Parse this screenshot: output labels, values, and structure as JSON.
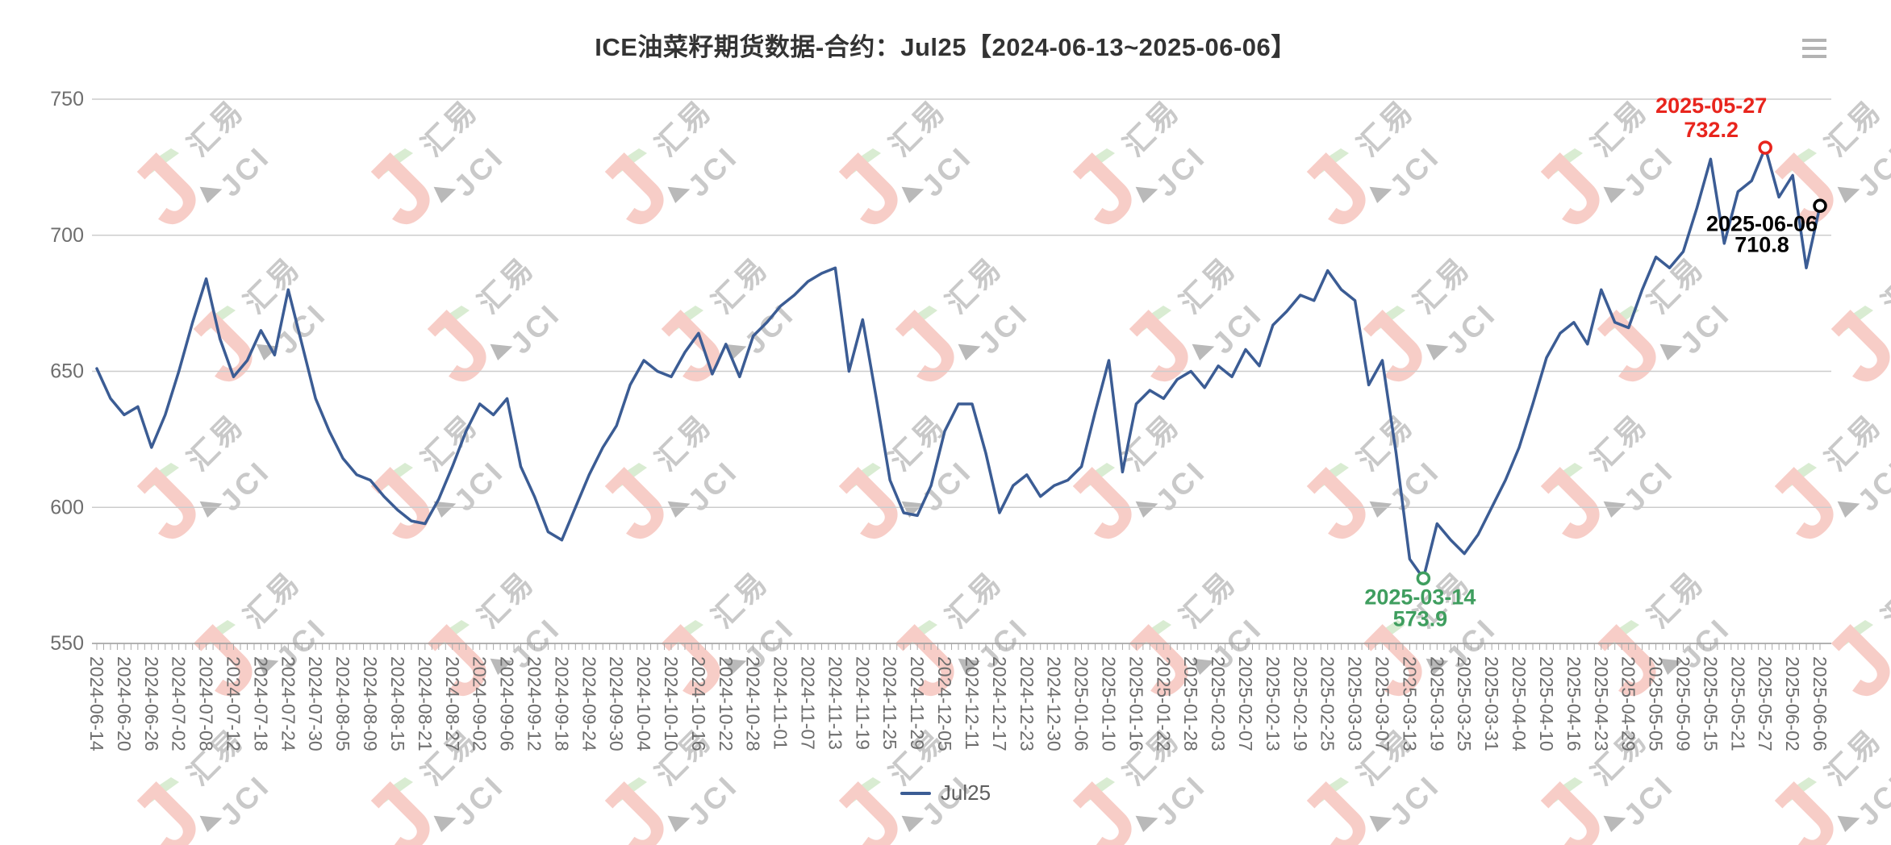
{
  "title": "ICE油菜籽期货数据-合约：Jul25【2024-06-13~2025-06-06】",
  "header": {
    "menu_icon": "hamburger-icon"
  },
  "legend": {
    "items": [
      {
        "label": "Jul25",
        "color": "#3b5c94"
      }
    ]
  },
  "y_axis": {
    "tick_labels": [
      "750",
      "700",
      "650",
      "600",
      "550"
    ],
    "min": 550,
    "max": 750
  },
  "annotations": {
    "max": {
      "date": "2025-05-27",
      "value": "732.2",
      "color": "#e8251d"
    },
    "min": {
      "date": "2025-03-14",
      "value": "573.9",
      "color": "#3f9e5f"
    },
    "last": {
      "date": "2025-06-06",
      "value": "710.8",
      "color": "#000000"
    }
  },
  "watermark": {
    "logo_letter": "J",
    "text_cn": "汇易",
    "text_en": "JCI"
  },
  "colors": {
    "line": "#3b5c94",
    "grid": "#cccccc",
    "axis_line": "#999999",
    "tick": "#aaaaaa",
    "axis_text": "#6e6e6e",
    "title_text": "#333333",
    "legend_text": "#5f5f5f",
    "menu_icon": "#b3b3b3",
    "wm_pink": "#f7cdc7",
    "wm_green": "#d9ecd2",
    "wm_gray": "#c9c9c9",
    "wm_dark_gray": "#b9b9b9"
  },
  "chart_data": {
    "type": "line",
    "title": "ICE油菜籽期货数据-合约：Jul25【2024-06-13~2025-06-06】",
    "ylim": [
      550,
      750
    ],
    "y_ticks": [
      750,
      700,
      650,
      600,
      550
    ],
    "grid": true,
    "legend_position": "bottom",
    "x_label_rotation": 90,
    "categories": [
      "2024-06-14",
      "2024-06-20",
      "2024-06-26",
      "2024-07-02",
      "2024-07-08",
      "2024-07-12",
      "2024-07-18",
      "2024-07-24",
      "2024-07-30",
      "2024-08-05",
      "2024-08-09",
      "2024-08-15",
      "2024-08-21",
      "2024-08-27",
      "2024-09-02",
      "2024-09-06",
      "2024-09-12",
      "2024-09-18",
      "2024-09-24",
      "2024-09-30",
      "2024-10-04",
      "2024-10-10",
      "2024-10-16",
      "2024-10-22",
      "2024-10-28",
      "2024-11-01",
      "2024-11-07",
      "2024-11-13",
      "2024-11-19",
      "2024-11-25",
      "2024-11-29",
      "2024-12-05",
      "2024-12-11",
      "2024-12-17",
      "2024-12-23",
      "2024-12-30",
      "2025-01-06",
      "2025-01-10",
      "2025-01-16",
      "2025-01-22",
      "2025-01-28",
      "2025-02-03",
      "2025-02-07",
      "2025-02-13",
      "2025-02-19",
      "2025-02-25",
      "2025-03-03",
      "2025-03-07",
      "2025-03-13",
      "2025-03-19",
      "2025-03-25",
      "2025-03-31",
      "2025-04-04",
      "2025-04-10",
      "2025-04-16",
      "2025-04-23",
      "2025-04-29",
      "2025-05-05",
      "2025-05-09",
      "2025-05-15",
      "2025-05-21",
      "2025-05-27",
      "2025-06-02",
      "2025-06-06"
    ],
    "sampling_note": "values estimated from pixels; one value at each category tick and one at the midpoint between consecutive ticks",
    "series": [
      {
        "name": "Jul25",
        "color": "#3b5c94",
        "values": [
          651,
          640,
          634,
          637,
          622,
          634,
          650,
          668,
          684,
          662,
          648,
          654,
          665,
          656,
          680,
          660,
          640,
          628,
          618,
          612,
          610,
          604,
          599,
          595,
          594,
          603,
          615,
          628,
          638,
          634,
          640,
          615,
          604,
          591,
          588,
          600,
          612,
          622,
          630,
          645,
          654,
          650,
          648,
          657,
          664,
          649,
          660,
          648,
          663,
          668,
          674,
          678,
          683,
          686,
          688,
          650,
          669,
          640,
          610,
          598,
          597,
          608,
          628,
          638,
          638,
          620,
          598,
          608,
          612,
          604,
          608,
          610,
          615,
          635,
          654,
          613,
          638,
          643,
          640,
          647,
          650,
          644,
          652,
          648,
          658,
          652,
          667,
          672,
          678,
          676,
          687,
          680,
          676,
          645,
          654,
          620,
          581,
          573.9,
          594,
          588,
          583,
          590,
          600,
          610,
          622,
          638,
          655,
          664,
          668,
          660,
          680,
          668,
          666,
          680,
          692,
          688,
          694,
          710,
          728,
          697,
          716,
          720,
          732.2,
          714,
          722,
          688,
          710.8
        ]
      }
    ],
    "annotated_points": [
      {
        "label": "max",
        "date": "2025-05-27",
        "value": 732.2,
        "series_value_index": 122
      },
      {
        "label": "min",
        "date": "2025-03-14",
        "value": 573.9,
        "series_value_index": 97
      },
      {
        "label": "last",
        "date": "2025-06-06",
        "value": 710.8,
        "series_value_index": 126
      }
    ]
  }
}
